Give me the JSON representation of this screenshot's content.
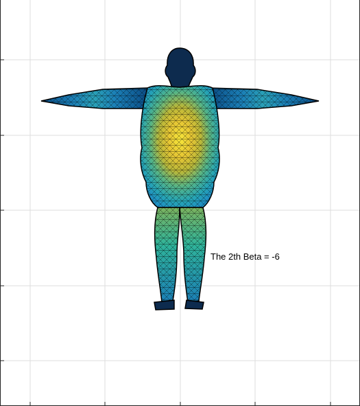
{
  "annotation": "The 2th Beta = -6",
  "grid": true,
  "colors": {
    "cool": "#1f9ec8",
    "mid": "#2fb39a",
    "warm": "#e0c23a",
    "hot": "#f4e13c",
    "edge": "#000000",
    "grid": "#dedede"
  }
}
